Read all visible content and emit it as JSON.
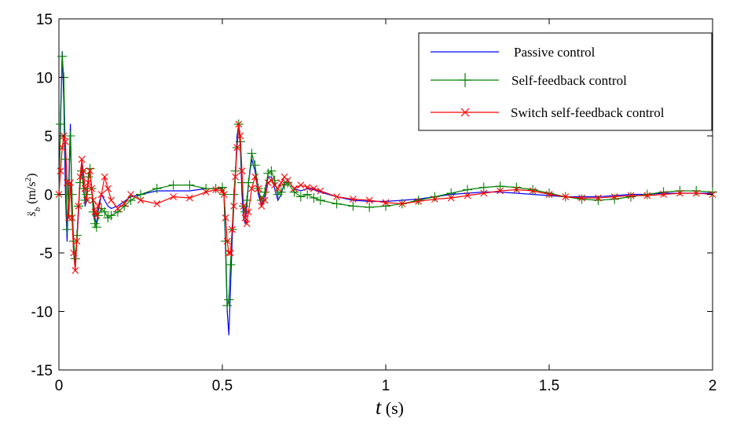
{
  "chart_data": {
    "type": "line",
    "title": "",
    "xlabel_var": "t",
    "xlabel_unit": " (s)",
    "ylabel_var": "s̈",
    "ylabel_sub": "b",
    "ylabel_unit_pre": " (m/s",
    "ylabel_unit_sup": "2",
    "ylabel_unit_post": ")",
    "xlim": [
      0,
      2
    ],
    "ylim": [
      -15,
      15
    ],
    "xticks": [
      0,
      0.5,
      1,
      1.5,
      2
    ],
    "xtick_labels": [
      "0",
      "0.5",
      "1",
      "1.5",
      "2"
    ],
    "yticks": [
      -15,
      -10,
      -5,
      0,
      5,
      10,
      15
    ],
    "ytick_labels": [
      "-15",
      "-10",
      "-5",
      "0",
      "5",
      "10",
      "15"
    ],
    "grid": false,
    "legend_position": "top-right",
    "series": [
      {
        "name": "Passive control",
        "color": "#0000ff",
        "marker": "none",
        "x": [
          0,
          0.005,
          0.01,
          0.015,
          0.02,
          0.025,
          0.03,
          0.035,
          0.04,
          0.045,
          0.05,
          0.055,
          0.06,
          0.065,
          0.07,
          0.075,
          0.08,
          0.085,
          0.09,
          0.095,
          0.1,
          0.105,
          0.11,
          0.115,
          0.12,
          0.13,
          0.14,
          0.15,
          0.16,
          0.18,
          0.2,
          0.22,
          0.25,
          0.3,
          0.35,
          0.4,
          0.45,
          0.48,
          0.5,
          0.505,
          0.51,
          0.515,
          0.52,
          0.525,
          0.53,
          0.535,
          0.54,
          0.545,
          0.55,
          0.555,
          0.56,
          0.565,
          0.57,
          0.575,
          0.58,
          0.59,
          0.6,
          0.61,
          0.62,
          0.63,
          0.64,
          0.65,
          0.66,
          0.67,
          0.68,
          0.69,
          0.7,
          0.72,
          0.74,
          0.76,
          0.78,
          0.8,
          0.85,
          0.9,
          0.95,
          1.0,
          1.05,
          1.1,
          1.15,
          1.2,
          1.25,
          1.3,
          1.35,
          1.4,
          1.45,
          1.5,
          1.55,
          1.6,
          1.65,
          1.7,
          1.75,
          1.8,
          1.85,
          1.9,
          1.95,
          2.0
        ],
        "values": [
          0,
          7,
          12.2,
          8,
          0,
          -4,
          1,
          6,
          -1,
          -5,
          -6,
          -4,
          -1.5,
          1.5,
          2.5,
          1,
          -1,
          -0.5,
          1.5,
          2,
          0.5,
          -1,
          -2,
          -2.5,
          -1.5,
          0,
          -0.5,
          -1,
          -1.2,
          -1,
          -0.6,
          -0.2,
          0,
          0.3,
          0.3,
          0.3,
          0.5,
          0.5,
          0.5,
          0,
          -5,
          -10,
          -12,
          -8,
          -4,
          -1,
          1.5,
          5,
          6,
          4,
          0,
          -2,
          -2.5,
          -1,
          1,
          3,
          2,
          0,
          -1,
          0,
          1.5,
          1.5,
          0.5,
          -0.5,
          0,
          1,
          1.2,
          0.5,
          0.3,
          0.5,
          0.4,
          0.2,
          -0.2,
          -0.5,
          -0.6,
          -0.6,
          -0.5,
          -0.4,
          -0.2,
          0,
          0.1,
          0.2,
          0.2,
          0.1,
          0,
          -0.1,
          -0.2,
          -0.2,
          -0.2,
          -0.1,
          0,
          0,
          0.1,
          0.1,
          0.1,
          0.1
        ]
      },
      {
        "name": "Self-feedback control",
        "color": "#008000",
        "marker": "plus",
        "x": [
          0,
          0.005,
          0.01,
          0.015,
          0.02,
          0.025,
          0.03,
          0.035,
          0.04,
          0.045,
          0.05,
          0.055,
          0.06,
          0.065,
          0.07,
          0.075,
          0.08,
          0.085,
          0.09,
          0.095,
          0.1,
          0.105,
          0.11,
          0.115,
          0.12,
          0.13,
          0.14,
          0.15,
          0.16,
          0.18,
          0.2,
          0.22,
          0.25,
          0.3,
          0.35,
          0.4,
          0.45,
          0.48,
          0.5,
          0.505,
          0.51,
          0.515,
          0.52,
          0.525,
          0.53,
          0.535,
          0.54,
          0.545,
          0.55,
          0.555,
          0.56,
          0.565,
          0.57,
          0.575,
          0.58,
          0.59,
          0.6,
          0.61,
          0.62,
          0.63,
          0.64,
          0.65,
          0.66,
          0.67,
          0.68,
          0.69,
          0.7,
          0.72,
          0.74,
          0.76,
          0.78,
          0.8,
          0.85,
          0.9,
          0.95,
          1.0,
          1.05,
          1.1,
          1.15,
          1.2,
          1.25,
          1.3,
          1.35,
          1.4,
          1.45,
          1.5,
          1.55,
          1.6,
          1.65,
          1.7,
          1.75,
          1.8,
          1.85,
          1.9,
          1.95,
          2.0
        ],
        "values": [
          0,
          6,
          11.8,
          10,
          3,
          -3,
          0,
          5,
          0,
          -4,
          -5.5,
          -3.5,
          -1,
          1,
          2,
          0.5,
          -0.5,
          0,
          1.5,
          2.2,
          0.5,
          -1.5,
          -2.5,
          -2.8,
          -1.8,
          -1.2,
          -1.5,
          -2,
          -1.8,
          -1.5,
          -1,
          -0.5,
          0,
          0.5,
          0.8,
          0.8,
          0.5,
          0.5,
          0.6,
          0,
          -4,
          -9.5,
          -9,
          -6,
          -3,
          0,
          2,
          4,
          6,
          4.5,
          1,
          -1,
          -1.5,
          -0.5,
          1,
          3.5,
          2.5,
          0.5,
          -0.5,
          0.2,
          1.8,
          2,
          1.2,
          0,
          0.2,
          0.8,
          1,
          0.2,
          -0.2,
          0,
          -0.3,
          -0.5,
          -0.8,
          -1,
          -1.1,
          -1,
          -0.8,
          -0.5,
          -0.2,
          0.1,
          0.4,
          0.6,
          0.7,
          0.6,
          0.4,
          0.1,
          -0.2,
          -0.4,
          -0.5,
          -0.4,
          -0.2,
          0,
          0.2,
          0.3,
          0.3,
          0.2
        ]
      },
      {
        "name": "Switch self-feedback control",
        "color": "#ff0000",
        "marker": "x",
        "x": [
          0,
          0.005,
          0.01,
          0.015,
          0.02,
          0.025,
          0.03,
          0.035,
          0.04,
          0.045,
          0.05,
          0.055,
          0.06,
          0.065,
          0.07,
          0.075,
          0.08,
          0.085,
          0.09,
          0.095,
          0.1,
          0.105,
          0.11,
          0.115,
          0.12,
          0.13,
          0.14,
          0.15,
          0.16,
          0.18,
          0.2,
          0.22,
          0.25,
          0.3,
          0.35,
          0.4,
          0.45,
          0.48,
          0.5,
          0.505,
          0.51,
          0.515,
          0.52,
          0.525,
          0.53,
          0.535,
          0.54,
          0.545,
          0.55,
          0.555,
          0.56,
          0.565,
          0.57,
          0.575,
          0.58,
          0.59,
          0.6,
          0.61,
          0.62,
          0.63,
          0.64,
          0.65,
          0.66,
          0.67,
          0.68,
          0.69,
          0.7,
          0.72,
          0.74,
          0.76,
          0.78,
          0.8,
          0.85,
          0.9,
          0.95,
          1.0,
          1.05,
          1.1,
          1.15,
          1.2,
          1.25,
          1.3,
          1.35,
          1.4,
          1.45,
          1.5,
          1.55,
          1.6,
          1.65,
          1.7,
          1.75,
          1.8,
          1.85,
          1.9,
          1.95,
          2.0
        ],
        "values": [
          0,
          2,
          4,
          5,
          4.5,
          1,
          -2,
          1,
          -2,
          -5,
          -6.5,
          -4,
          -1,
          1.5,
          3,
          2,
          0.5,
          -0.5,
          1,
          2,
          0.5,
          -0.5,
          -1.5,
          -1.8,
          -1,
          0,
          1.5,
          0.5,
          -0.5,
          -1.2,
          -0.8,
          0,
          -0.5,
          -0.8,
          -0.2,
          -0.3,
          0.2,
          0.4,
          0.3,
          0,
          -2,
          -4,
          -5,
          -5,
          -3,
          -1,
          1.5,
          4,
          6,
          5,
          2,
          -1,
          -2,
          -2.5,
          -1.5,
          0.5,
          1.5,
          0.5,
          -1,
          -0.5,
          1,
          1.2,
          0.8,
          0.5,
          1,
          1.5,
          1.2,
          0.5,
          0.8,
          0.6,
          0.5,
          0.3,
          -0.2,
          -0.4,
          -0.5,
          -0.7,
          -0.8,
          -0.6,
          -0.4,
          -0.3,
          -0.1,
          0.1,
          0.3,
          0.4,
          0.3,
          0,
          -0.2,
          -0.3,
          -0.3,
          -0.2,
          -0.1,
          -0.1,
          0,
          0.1,
          0.1,
          0
        ]
      }
    ]
  }
}
